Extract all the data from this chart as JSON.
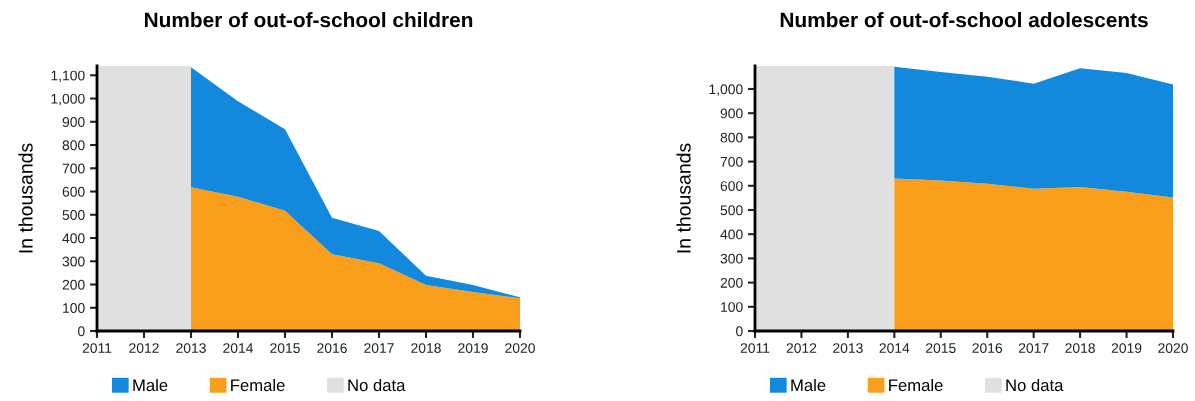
{
  "chart_data": [
    {
      "type": "area",
      "title": "Number of out-of-school children",
      "ylabel": "In thousands",
      "stacked": true,
      "x": [
        2013,
        2014,
        2015,
        2016,
        2017,
        2018,
        2019,
        2020
      ],
      "series": [
        {
          "name": "Female",
          "color": "#fa9f1b",
          "values": [
            618,
            577,
            517,
            330,
            291,
            198,
            168,
            141
          ]
        },
        {
          "name": "Male",
          "color": "#1389dd",
          "values": [
            517,
            411,
            351,
            157,
            139,
            40,
            30,
            4
          ]
        }
      ],
      "bands": [
        {
          "axis": "x",
          "from": 2011,
          "to": 2013,
          "label": "No data",
          "color": "#e0e0e0"
        }
      ],
      "xlim": [
        2011,
        2020
      ],
      "xticks": [
        2011,
        2012,
        2013,
        2014,
        2015,
        2016,
        2017,
        2018,
        2019,
        2020
      ],
      "ylim": [
        0,
        1140
      ],
      "yticks": [
        0,
        {
          "value": 100,
          "label": "100"
        },
        {
          "value": 200,
          "label": "200"
        },
        {
          "value": 300,
          "label": "300"
        },
        {
          "value": 400,
          "label": "400"
        },
        {
          "value": 500,
          "label": "500"
        },
        {
          "value": 600,
          "label": "600"
        },
        {
          "value": 700,
          "label": "700"
        },
        {
          "value": 800,
          "label": "800"
        },
        {
          "value": 900,
          "label": "900"
        },
        {
          "value": 1000,
          "label": "1,000"
        },
        {
          "value": 1100,
          "label": "1,100"
        }
      ],
      "grid": false,
      "legend": "bottom"
    },
    {
      "type": "area",
      "title": "Number of out-of-school adolescents",
      "ylabel": "In thousands",
      "stacked": true,
      "x": [
        2014,
        2015,
        2016,
        2017,
        2018,
        2019,
        2020
      ],
      "series": [
        {
          "name": "Female",
          "color": "#fa9f1b",
          "values": [
            630,
            622,
            608,
            588,
            595,
            575,
            552
          ]
        },
        {
          "name": "Male",
          "color": "#1389dd",
          "values": [
            462,
            448,
            443,
            434,
            491,
            491,
            467
          ]
        }
      ],
      "bands": [
        {
          "axis": "x",
          "from": 2011,
          "to": 2014,
          "label": "No data",
          "color": "#e0e0e0"
        }
      ],
      "xlim": [
        2011,
        2020
      ],
      "xticks": [
        2011,
        2012,
        2013,
        2014,
        2015,
        2016,
        2017,
        2018,
        2019,
        2020
      ],
      "ylim": [
        0,
        1095
      ],
      "yticks": [
        0,
        100,
        200,
        300,
        400,
        500,
        600,
        700,
        800,
        900,
        {
          "value": 1000,
          "label": "1,000"
        }
      ],
      "grid": false,
      "legend": "bottom"
    }
  ]
}
